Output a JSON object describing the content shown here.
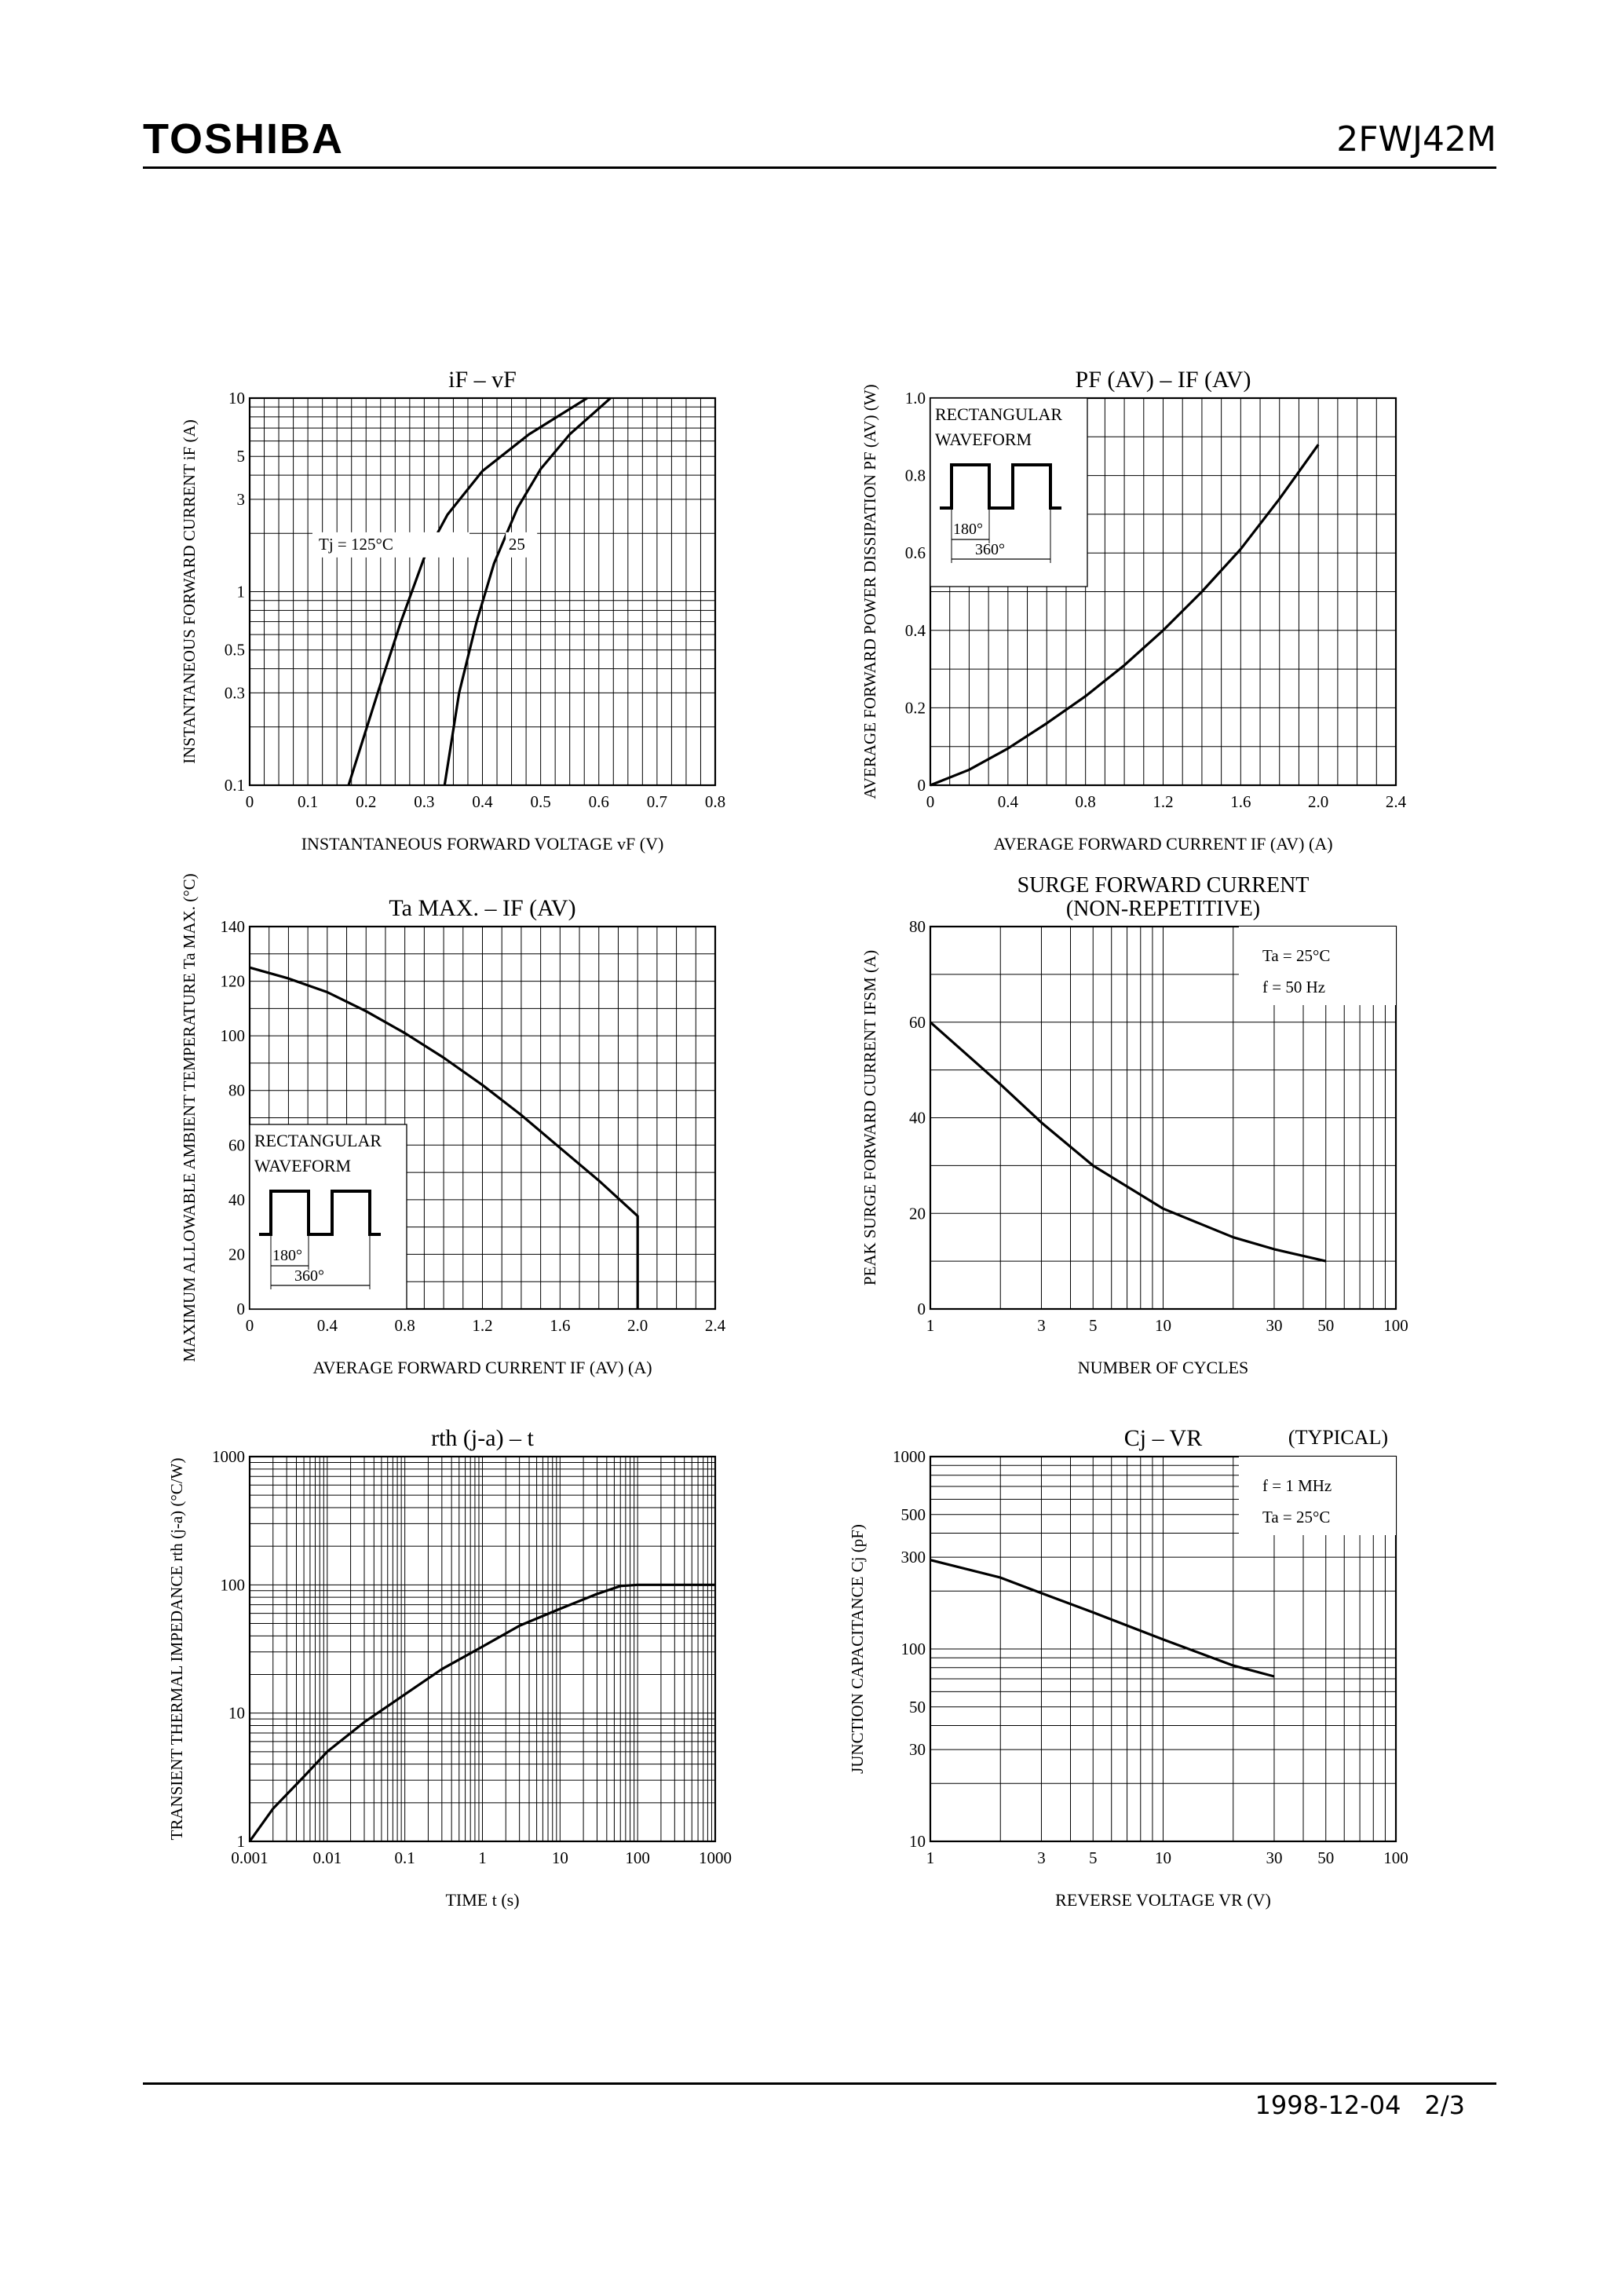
{
  "header": {
    "brand": "TOSHIBA",
    "part_number": "2FWJ42M"
  },
  "footer": {
    "date": "1998-12-04",
    "page": "2/3"
  },
  "chart_data": [
    {
      "id": "if-vf",
      "type": "line",
      "title": "iF – vF",
      "xlabel": "INSTANTANEOUS FORWARD VOLTAGE  vF  (V)",
      "ylabel": "INSTANTANEOUS FORWARD CURRENT  iF  (A)",
      "xscale": "linear",
      "yscale": "log",
      "xlim": [
        0,
        0.8
      ],
      "ylim": [
        0.1,
        10
      ],
      "xticks": [
        0,
        0.1,
        0.2,
        0.3,
        0.4,
        0.5,
        0.6,
        0.7,
        0.8
      ],
      "xticklabels": [
        "0",
        "0.1",
        "0.2",
        "0.3",
        "0.4",
        "0.5",
        "0.6",
        "0.7",
        "0.8"
      ],
      "yticks": [
        0.1,
        0.3,
        0.5,
        1,
        3,
        5,
        10
      ],
      "yticklabels": [
        "0.1",
        "0.3",
        "0.5",
        "1",
        "3",
        "5",
        "10"
      ],
      "series": [
        {
          "name": "Tj = 125°C",
          "x": [
            0.17,
            0.22,
            0.26,
            0.3,
            0.34,
            0.4,
            0.48,
            0.58
          ],
          "y": [
            0.1,
            0.3,
            0.7,
            1.5,
            2.5,
            4.2,
            6.5,
            10
          ]
        },
        {
          "name": "25",
          "x": [
            0.335,
            0.36,
            0.39,
            0.42,
            0.46,
            0.5,
            0.55,
            0.62
          ],
          "y": [
            0.1,
            0.3,
            0.7,
            1.4,
            2.7,
            4.3,
            6.5,
            10
          ]
        }
      ],
      "annotations": [
        "Tj = 125°C",
        "25"
      ]
    },
    {
      "id": "pf-if",
      "type": "line",
      "title": "PF (AV) – IF (AV)",
      "xlabel": "AVERAGE FORWARD CURRENT  IF (AV)  (A)",
      "ylabel": "AVERAGE FORWARD POWER DISSIPATION  PF (AV)  (W)",
      "xscale": "linear",
      "yscale": "linear",
      "xlim": [
        0,
        2.4
      ],
      "ylim": [
        0,
        1.0
      ],
      "xticks": [
        0,
        0.4,
        0.8,
        1.2,
        1.6,
        2.0,
        2.4
      ],
      "xticklabels": [
        "0",
        "0.4",
        "0.8",
        "1.2",
        "1.6",
        "2.0",
        "2.4"
      ],
      "yticks": [
        0,
        0.2,
        0.4,
        0.6,
        0.8,
        1.0
      ],
      "yticklabels": [
        "0",
        "0.2",
        "0.4",
        "0.6",
        "0.8",
        "1.0"
      ],
      "series": [
        {
          "name": "",
          "x": [
            0,
            0.2,
            0.4,
            0.6,
            0.8,
            1.0,
            1.2,
            1.4,
            1.6,
            1.8,
            2.0
          ],
          "y": [
            0,
            0.04,
            0.095,
            0.16,
            0.23,
            0.31,
            0.4,
            0.5,
            0.61,
            0.74,
            0.88
          ]
        }
      ],
      "inset_labels": [
        "RECTANGULAR",
        "WAVEFORM",
        "180°",
        "360°"
      ]
    },
    {
      "id": "ta-if",
      "type": "line",
      "title": "Ta MAX. – IF (AV)",
      "xlabel": "AVERAGE FORWARD CURRENT  IF (AV)  (A)",
      "ylabel": "MAXIMUM ALLOWABLE AMBIENT TEMPERATURE  Ta MAX.  (°C)",
      "xscale": "linear",
      "yscale": "linear",
      "xlim": [
        0,
        2.4
      ],
      "ylim": [
        0,
        140
      ],
      "xticks": [
        0,
        0.4,
        0.8,
        1.2,
        1.6,
        2.0,
        2.4
      ],
      "xticklabels": [
        "0",
        "0.4",
        "0.8",
        "1.2",
        "1.6",
        "2.0",
        "2.4"
      ],
      "yticks": [
        0,
        20,
        40,
        60,
        80,
        100,
        120,
        140
      ],
      "yticklabels": [
        "0",
        "20",
        "40",
        "60",
        "80",
        "100",
        "120",
        "140"
      ],
      "series": [
        {
          "name": "",
          "x": [
            0,
            0.2,
            0.4,
            0.6,
            0.8,
            1.0,
            1.2,
            1.4,
            1.6,
            1.8,
            2.0,
            2.0
          ],
          "y": [
            125,
            121,
            116,
            109,
            101,
            92,
            82,
            71,
            59,
            47,
            34,
            0
          ]
        }
      ],
      "inset_labels": [
        "RECTANGULAR",
        "WAVEFORM",
        "180°",
        "360°"
      ]
    },
    {
      "id": "ifsm-cycles",
      "type": "line",
      "title": "SURGE FORWARD CURRENT",
      "subtitle": "(NON-REPETITIVE)",
      "xlabel": "NUMBER OF CYCLES",
      "ylabel": "PEAK SURGE FORWARD CURRENT  IFSM  (A)",
      "xscale": "log",
      "yscale": "linear",
      "xlim": [
        1,
        100
      ],
      "ylim": [
        0,
        80
      ],
      "xticks": [
        1,
        3,
        5,
        10,
        30,
        50,
        100
      ],
      "xticklabels": [
        "1",
        "3",
        "5",
        "10",
        "30",
        "50",
        "100"
      ],
      "yticks": [
        0,
        20,
        40,
        60,
        80
      ],
      "yticklabels": [
        "0",
        "20",
        "40",
        "60",
        "80"
      ],
      "series": [
        {
          "name": "",
          "x": [
            1,
            2,
            3,
            5,
            10,
            20,
            30,
            50
          ],
          "y": [
            60,
            47,
            39,
            30,
            21,
            15,
            12.5,
            10
          ]
        }
      ],
      "annotations": [
        "Ta = 25°C",
        "f = 50 Hz"
      ]
    },
    {
      "id": "rth-t",
      "type": "line",
      "title": "rth (j-a) – t",
      "xlabel": "TIME  t  (s)",
      "ylabel": "TRANSIENT THERMAL IMPEDANCE  rth (j-a)  (°C/W)",
      "xscale": "log",
      "yscale": "log",
      "xlim": [
        0.001,
        1000
      ],
      "ylim": [
        1,
        1000
      ],
      "xticks": [
        0.001,
        0.01,
        0.1,
        1,
        10,
        100,
        1000
      ],
      "xticklabels": [
        "0.001",
        "0.01",
        "0.1",
        "1",
        "10",
        "100",
        "1000"
      ],
      "yticks": [
        1,
        10,
        100,
        1000
      ],
      "yticklabels": [
        "1",
        "10",
        "100",
        "1000"
      ],
      "series": [
        {
          "name": "",
          "x": [
            0.001,
            0.002,
            0.005,
            0.01,
            0.03,
            0.1,
            0.3,
            1,
            3,
            10,
            30,
            60,
            100,
            1000
          ],
          "y": [
            1,
            1.8,
            3.2,
            5,
            8.5,
            14,
            22,
            33,
            48,
            65,
            85,
            98,
            100,
            100
          ]
        }
      ]
    },
    {
      "id": "cj-vr",
      "type": "line",
      "title": "Cj – VR",
      "subtitle": "(TYPICAL)",
      "xlabel": "REVERSE VOLTAGE  VR  (V)",
      "ylabel": "JUNCTION CAPACITANCE  Cj  (pF)",
      "xscale": "log",
      "yscale": "log",
      "xlim": [
        1,
        100
      ],
      "ylim": [
        10,
        1000
      ],
      "xticks": [
        1,
        3,
        5,
        10,
        30,
        50,
        100
      ],
      "xticklabels": [
        "1",
        "3",
        "5",
        "10",
        "30",
        "50",
        "100"
      ],
      "yticks": [
        10,
        30,
        50,
        100,
        300,
        500,
        1000
      ],
      "yticklabels": [
        "10",
        "30",
        "50",
        "100",
        "300",
        "500",
        "1000"
      ],
      "series": [
        {
          "name": "",
          "x": [
            1,
            2,
            3,
            5,
            10,
            20,
            30
          ],
          "y": [
            290,
            235,
            195,
            155,
            112,
            82,
            72
          ]
        }
      ],
      "annotations": [
        "f = 1 MHz",
        "Ta = 25°C"
      ]
    }
  ]
}
